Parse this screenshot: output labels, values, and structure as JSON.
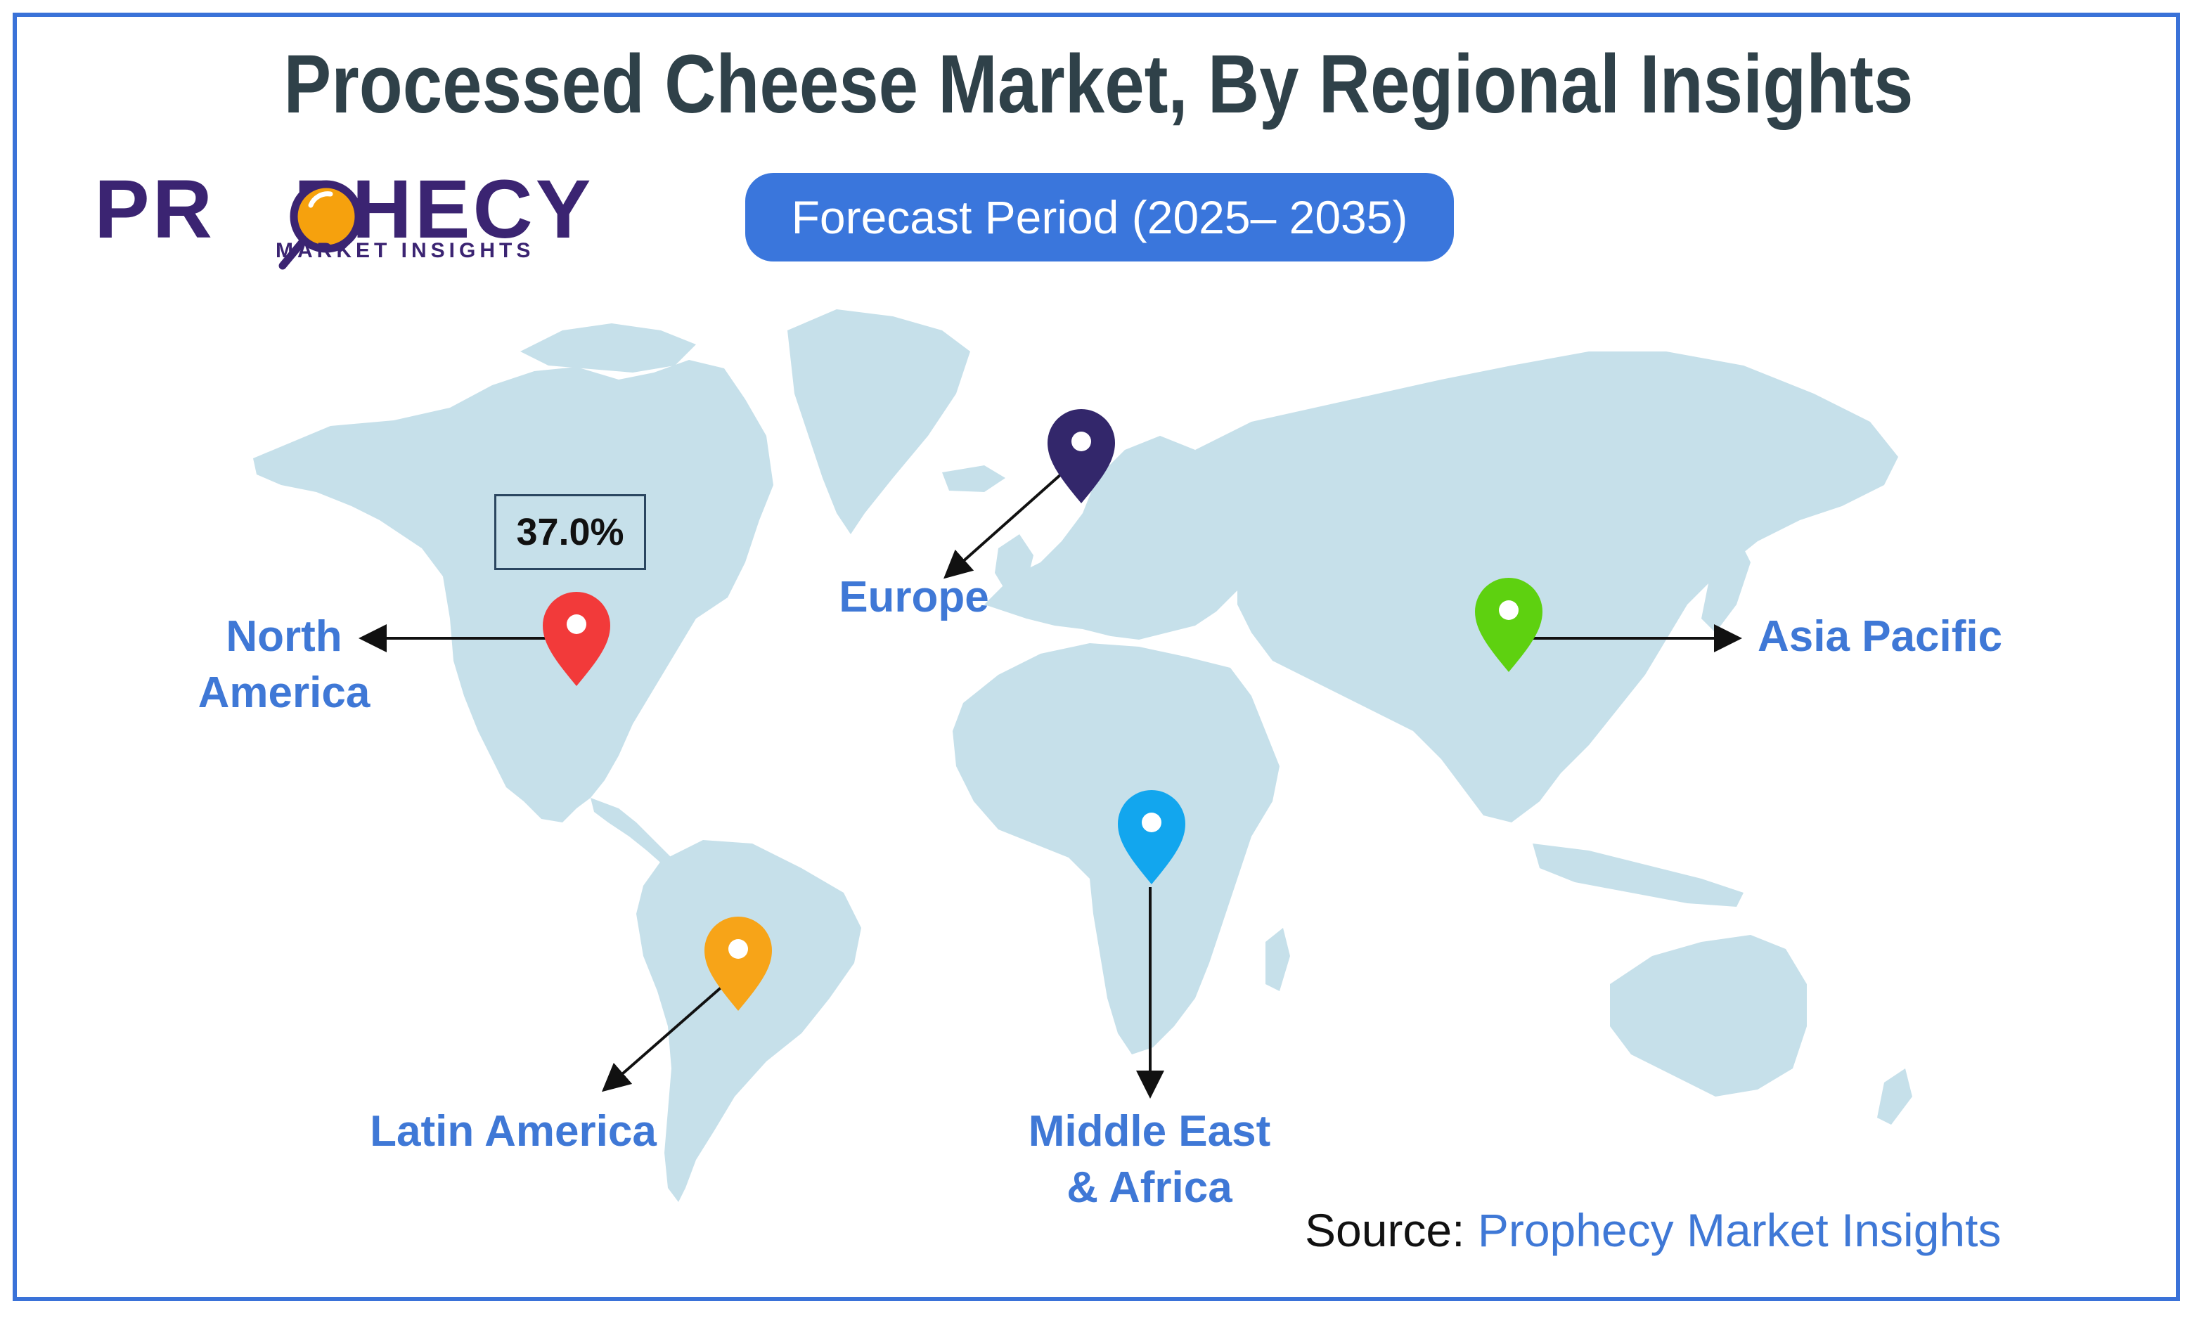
{
  "title": "Processed Cheese Market, By Regional Insights",
  "logo": {
    "name_start": "PR",
    "name_end": "PHECY",
    "tagline": "MARKET INSIGHTS"
  },
  "forecast_pill": "Forecast Period (2025– 2035)",
  "regions": [
    {
      "name_line1": "North",
      "name_line2": "America",
      "pin_color": "#f23a3a",
      "share": "37.0%"
    },
    {
      "name_line1": "Europe",
      "name_line2": "",
      "pin_color": "#33276b"
    },
    {
      "name_line1": "Asia Pacific",
      "name_line2": "",
      "pin_color": "#5ed110"
    },
    {
      "name_line1": "Latin America",
      "name_line2": "",
      "pin_color": "#f7a418"
    },
    {
      "name_line1": "Middle East",
      "name_line2": "& Africa",
      "pin_color": "#12a6ee"
    }
  ],
  "source": {
    "label": "Source:",
    "value": "Prophecy Market Insights"
  },
  "colors": {
    "frame": "#3a72d8",
    "title": "#2f4149",
    "land": "#c6e0ea",
    "label": "#3f78d6",
    "pill": "#3a76dc",
    "brand": "#3b2472"
  }
}
